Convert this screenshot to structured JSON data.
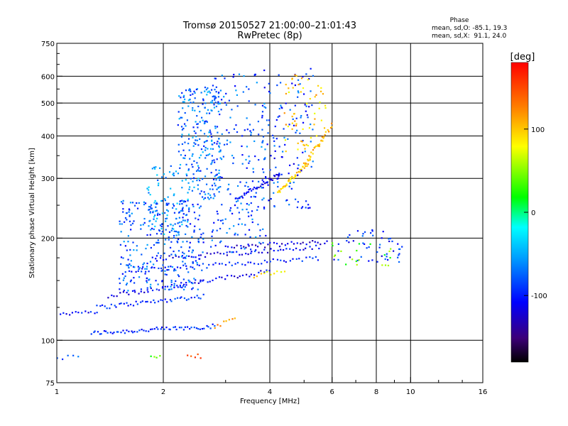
{
  "chart_data": {
    "type": "scatter",
    "title": "Tromsø 20150527 21:00:00–21:01:43",
    "subtitle": "RwPretec (8p)",
    "xlabel": "Frequency [MHz]",
    "ylabel": "Stationary phase Virtual Height [km]",
    "x_scale": "log",
    "y_scale": "log",
    "xlim": [
      1,
      16
    ],
    "ylim": [
      75,
      750
    ],
    "x_ticks": [
      "1",
      "2",
      "4",
      "6",
      "8",
      "10",
      "16"
    ],
    "y_ticks": [
      "75",
      "100",
      "200",
      "300",
      "400",
      "500",
      "600",
      "750"
    ],
    "grid": true,
    "phase_box": {
      "title": "Phase",
      "line_o": "mean, sd,O: -85.1, 19.3",
      "line_x": "mean, sd,X:  91.1, 24.0"
    },
    "colorbar": {
      "label": "[deg]",
      "range": [
        -180,
        180
      ],
      "tick_labels": [
        "100",
        "0",
        "-100"
      ],
      "tick_values": [
        100,
        0,
        -100
      ]
    },
    "traces": [
      {
        "phase": -95,
        "x0": 1.25,
        "x1": 2.8,
        "y0": 105,
        "y1": 110,
        "count": 60
      },
      {
        "phase": -105,
        "x0": 1.0,
        "x1": 1.3,
        "y0": 120,
        "y1": 122,
        "count": 14
      },
      {
        "phase": -95,
        "x0": 1.3,
        "x1": 2.6,
        "y0": 125,
        "y1": 135,
        "count": 45
      },
      {
        "phase": -110,
        "x0": 1.4,
        "x1": 4.0,
        "y0": 135,
        "y1": 160,
        "count": 55
      },
      {
        "phase": -100,
        "x0": 1.6,
        "x1": 5.5,
        "y0": 160,
        "y1": 175,
        "count": 60
      },
      {
        "phase": -110,
        "x0": 2.0,
        "x1": 5.5,
        "y0": 175,
        "y1": 188,
        "count": 50
      },
      {
        "phase": -120,
        "x0": 3.0,
        "x1": 5.8,
        "y0": 188,
        "y1": 195,
        "count": 35
      },
      {
        "phase": -110,
        "x0": 3.2,
        "x1": 4.3,
        "y0": 260,
        "y1": 310,
        "count": 40
      },
      {
        "phase": 95,
        "x0": 4.2,
        "x1": 5.2,
        "y0": 270,
        "y1": 340,
        "count": 45
      },
      {
        "phase": 110,
        "x0": 5.0,
        "x1": 6.0,
        "y0": 330,
        "y1": 430,
        "count": 30
      },
      {
        "phase": 85,
        "x0": 3.6,
        "x1": 4.4,
        "y0": 155,
        "y1": 160,
        "count": 10
      },
      {
        "phase": 120,
        "x0": 2.8,
        "x1": 3.2,
        "y0": 110,
        "y1": 115,
        "count": 8
      },
      {
        "phase": 150,
        "x0": 2.35,
        "x1": 2.55,
        "y0": 90,
        "y1": 90,
        "count": 5
      },
      {
        "phase": 35,
        "x0": 1.85,
        "x1": 1.95,
        "y0": 89,
        "y1": 89,
        "count": 4
      },
      {
        "phase": -80,
        "x0": 1.0,
        "x1": 1.15,
        "y0": 89,
        "y1": 90,
        "count": 5
      }
    ],
    "clouds": [
      {
        "phase": -80,
        "x0": 1.5,
        "x1": 2.6,
        "y0": 140,
        "y1": 260,
        "count": 320
      },
      {
        "phase": -70,
        "x0": 2.2,
        "x1": 2.9,
        "y0": 260,
        "y1": 560,
        "count": 240
      },
      {
        "phase": -60,
        "x0": 1.8,
        "x1": 2.4,
        "y0": 200,
        "y1": 330,
        "count": 80
      },
      {
        "phase": -80,
        "x0": 2.7,
        "x1": 3.9,
        "y0": 180,
        "y1": 610,
        "count": 200
      },
      {
        "phase": -90,
        "x0": 3.8,
        "x1": 5.3,
        "y0": 240,
        "y1": 640,
        "count": 130
      },
      {
        "phase": 100,
        "x0": 4.4,
        "x1": 5.8,
        "y0": 360,
        "y1": 610,
        "count": 60
      },
      {
        "phase": -95,
        "x0": 6.0,
        "x1": 9.5,
        "y0": 170,
        "y1": 215,
        "count": 50
      },
      {
        "phase": 40,
        "x0": 6.0,
        "x1": 9.0,
        "y0": 165,
        "y1": 195,
        "count": 20
      }
    ]
  }
}
